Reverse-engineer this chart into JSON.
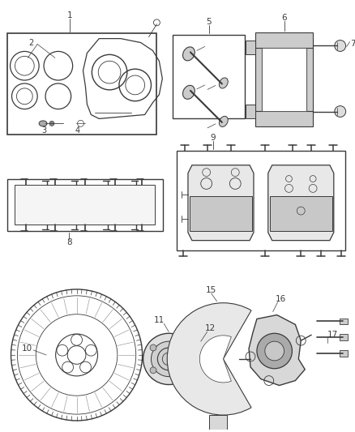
{
  "background_color": "#ffffff",
  "line_color": "#3a3a3a",
  "label_color": "#3a3a3a",
  "figsize": [
    4.38,
    5.33
  ],
  "dpi": 100
}
